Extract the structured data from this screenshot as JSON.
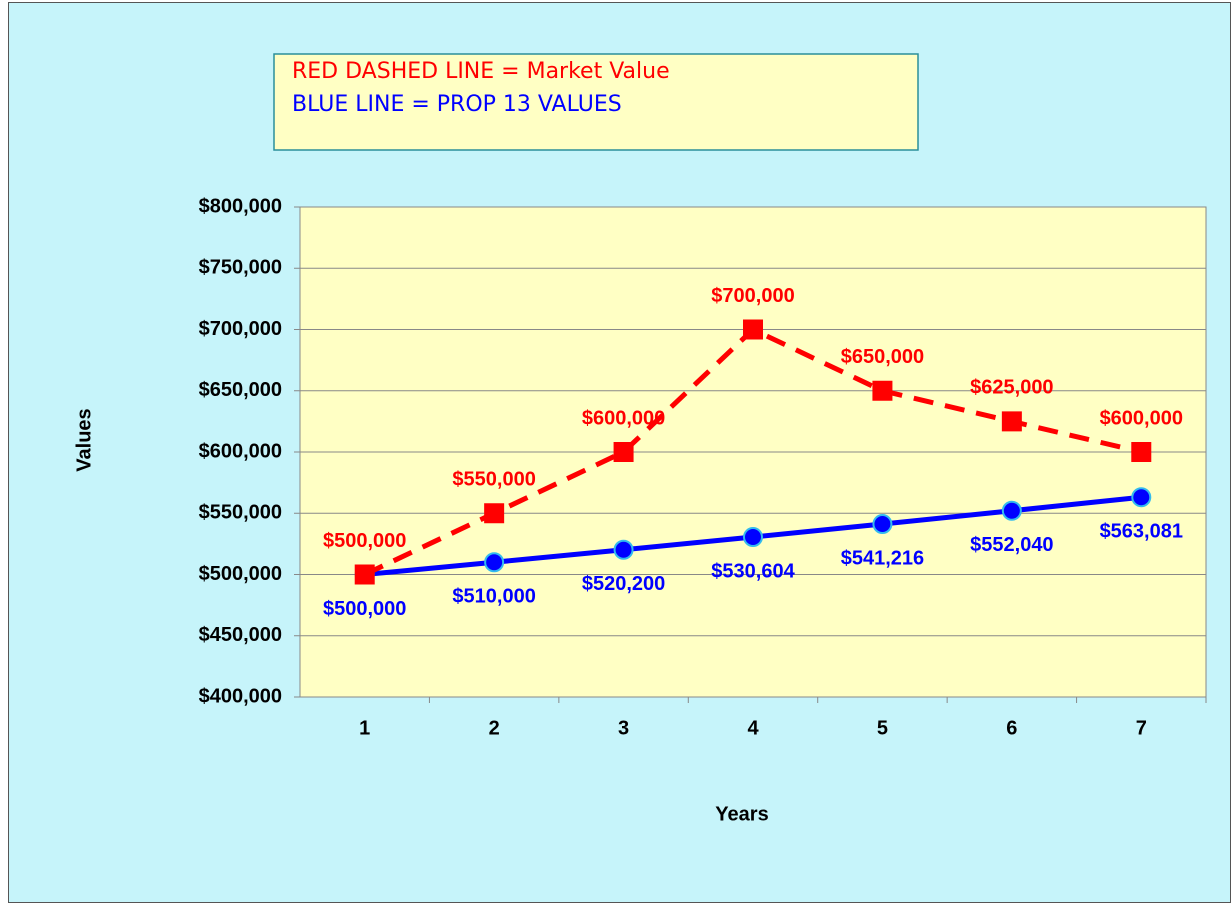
{
  "chart_data": {
    "type": "line",
    "x_label": "Years",
    "y_label": "Values",
    "categories": [
      "1",
      "2",
      "3",
      "4",
      "5",
      "6",
      "7"
    ],
    "series": [
      {
        "name": "RED DASHED LINE = Market Value",
        "color": "#ff0000",
        "dashed": true,
        "marker": "square",
        "values": [
          500000,
          550000,
          600000,
          700000,
          650000,
          625000,
          600000
        ],
        "value_labels": [
          "$500,000",
          "$550,000",
          "$600,000",
          "$700,000",
          "$650,000",
          "$625,000",
          "$600,000"
        ]
      },
      {
        "name": "BLUE LINE = PROP 13 VALUES",
        "color": "#0000ff",
        "dashed": false,
        "marker": "circle",
        "values": [
          500000,
          510000,
          520200,
          530604,
          541216,
          552040,
          563081
        ],
        "value_labels": [
          "$500,000",
          "$510,000",
          "$520,200",
          "$530,604",
          "$541,216",
          "$552,040",
          "$563,081"
        ]
      }
    ],
    "ylim": [
      400000,
      800000
    ],
    "yticks": [
      {
        "value": 400000,
        "label": "$400,000"
      },
      {
        "value": 450000,
        "label": "$450,000"
      },
      {
        "value": 500000,
        "label": "$500,000"
      },
      {
        "value": 550000,
        "label": "$550,000"
      },
      {
        "value": 600000,
        "label": "$600,000"
      },
      {
        "value": 650000,
        "label": "$650,000"
      },
      {
        "value": 700000,
        "label": "$700,000"
      },
      {
        "value": 750000,
        "label": "$750,000"
      },
      {
        "value": 800000,
        "label": "$800,000"
      }
    ],
    "grid": true
  }
}
